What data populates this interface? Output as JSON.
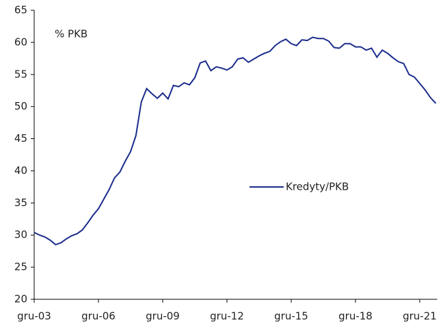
{
  "chart_data": {
    "type": "line",
    "annotation": "% PKB",
    "categories": [
      "gru-03",
      null,
      null,
      null,
      null,
      null,
      null,
      null,
      null,
      null,
      null,
      null,
      "gru-06",
      null,
      null,
      null,
      null,
      null,
      null,
      null,
      null,
      null,
      null,
      null,
      "gru-09",
      null,
      null,
      null,
      null,
      null,
      null,
      null,
      null,
      null,
      null,
      null,
      "gru-12",
      null,
      null,
      null,
      null,
      null,
      null,
      null,
      null,
      null,
      null,
      null,
      "gru-15",
      null,
      null,
      null,
      null,
      null,
      null,
      null,
      null,
      null,
      null,
      null,
      "gru-18",
      null,
      null,
      null,
      null,
      null,
      null,
      null,
      null,
      null,
      null,
      null,
      "gru-21",
      null,
      null,
      null
    ],
    "series": [
      {
        "name": "Kredyty/PKB",
        "color": "#1a2b8c",
        "values": [
          30.4,
          30.0,
          29.7,
          29.2,
          28.5,
          28.8,
          29.4,
          29.9,
          30.2,
          30.8,
          31.9,
          33.1,
          34.1,
          35.6,
          37.1,
          38.9,
          39.8,
          41.5,
          43.0,
          45.5,
          50.7,
          52.8,
          52.0,
          51.3,
          52.1,
          51.2,
          53.3,
          53.1,
          53.7,
          53.4,
          54.5,
          56.8,
          57.1,
          55.6,
          56.2,
          56.0,
          55.7,
          56.2,
          57.4,
          57.6,
          56.9,
          57.4,
          57.9,
          58.3,
          58.6,
          59.5,
          60.1,
          60.5,
          59.8,
          59.5,
          60.4,
          60.3,
          60.8,
          60.6,
          60.6,
          60.2,
          59.2,
          59.1,
          59.8,
          59.8,
          59.3,
          59.3,
          58.8,
          59.1,
          57.7,
          58.8,
          58.3,
          57.6,
          57.0,
          56.7,
          55.0,
          54.6,
          53.6,
          52.6,
          51.4,
          50.5
        ]
      }
    ],
    "ylim": [
      20,
      65
    ],
    "yticks": [
      20,
      25,
      30,
      35,
      40,
      45,
      50,
      55,
      60,
      65
    ],
    "legend": "center-right"
  }
}
